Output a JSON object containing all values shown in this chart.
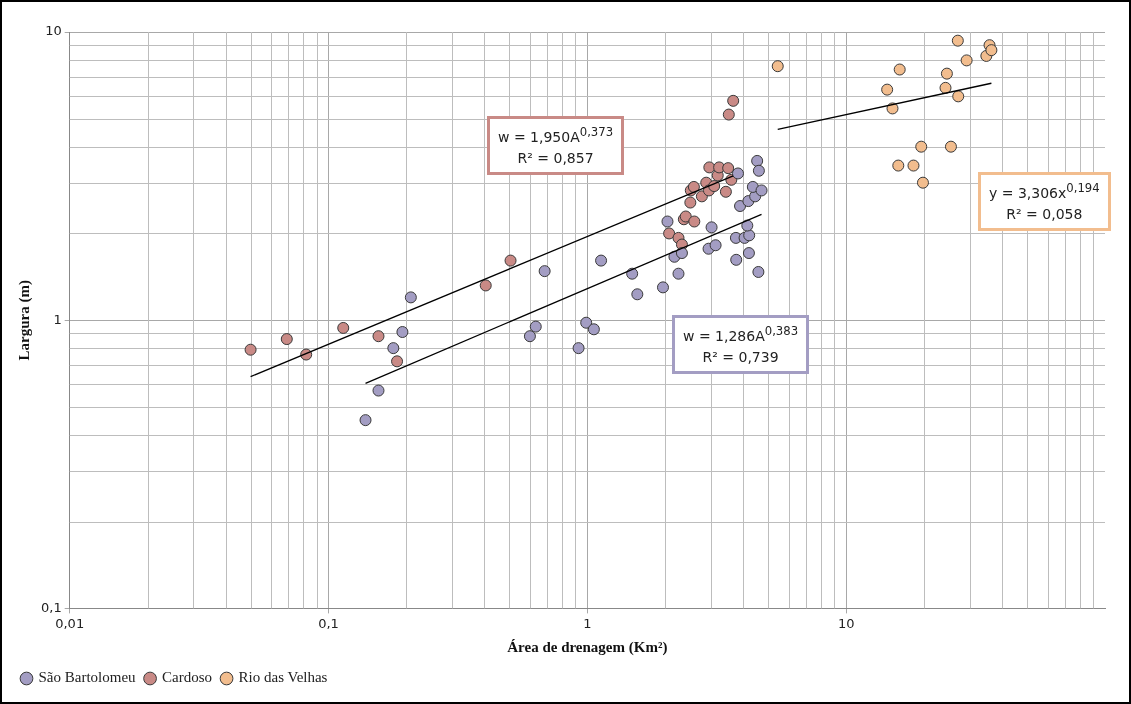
{
  "chart_data": {
    "type": "scatter",
    "xlabel": "Área de drenagem (Km²)",
    "ylabel": "Largura (m)",
    "log": "xy",
    "xlim": [
      0.01,
      100
    ],
    "ylim": [
      0.1,
      10
    ],
    "xticks": [
      {
        "value": 0.01,
        "label": "0,01"
      },
      {
        "value": 0.1,
        "label": "0,1"
      },
      1,
      10
    ],
    "yticks": [
      {
        "value": 0.1,
        "label": "0,1"
      },
      1,
      10
    ],
    "grid": true,
    "legend": "bottom left",
    "marker": "circle",
    "series": [
      {
        "name": "São Bartolomeu",
        "color": "#a39dc3",
        "x": [
          0.208,
          0.193,
          0.178,
          0.156,
          0.139,
          0.684,
          0.632,
          0.6,
          1.13,
          0.99,
          1.06,
          0.925,
          1.49,
          1.56,
          1.96,
          2.25,
          2.04,
          2.17,
          2.32,
          3.02,
          2.94,
          3.13,
          3.76,
          3.75,
          4.05,
          4.22,
          4.15,
          4.21,
          4.58,
          3.82,
          3.89,
          4.19,
          4.45,
          4.36,
          4.71,
          4.53,
          4.6
        ],
        "values": [
          1.2,
          0.91,
          0.8,
          0.57,
          0.45,
          1.48,
          0.95,
          0.88,
          1.61,
          0.98,
          0.93,
          0.8,
          1.45,
          1.23,
          1.3,
          1.45,
          2.2,
          1.66,
          1.71,
          2.1,
          1.77,
          1.82,
          1.62,
          1.93,
          1.93,
          1.97,
          2.13,
          1.71,
          1.47,
          3.23,
          2.49,
          2.59,
          2.69,
          2.9,
          2.82,
          3.57,
          3.3
        ]
      },
      {
        "name": "Cardoso",
        "color": "#c98a86",
        "x": [
          0.05,
          0.069,
          0.082,
          0.114,
          0.156,
          0.184,
          0.405,
          0.505,
          2.07,
          2.25,
          2.32,
          2.36,
          2.4,
          2.59,
          2.5,
          2.51,
          2.58,
          2.77,
          2.88,
          2.95,
          3.09,
          3.19,
          2.96,
          3.23,
          3.5,
          3.43,
          3.6,
          3.52,
          3.66
        ],
        "values": [
          0.79,
          0.86,
          0.76,
          0.94,
          0.88,
          0.72,
          1.32,
          1.61,
          2.0,
          1.93,
          1.83,
          2.24,
          2.29,
          2.2,
          2.56,
          2.82,
          2.9,
          2.69,
          3.0,
          2.82,
          2.92,
          3.18,
          3.39,
          3.39,
          3.37,
          2.79,
          3.07,
          5.17,
          5.77
        ]
      },
      {
        "name": "Rio das Velhas",
        "color": "#f2bd8e",
        "x": [
          5.44,
          14.4,
          16.1,
          15.1,
          15.9,
          18.2,
          19.5,
          19.8,
          25.4,
          24.5,
          24.2,
          27.1,
          27.0,
          29.2,
          34.8,
          35.8,
          36.4
        ],
        "values": [
          7.61,
          6.31,
          7.41,
          5.43,
          3.44,
          3.44,
          4.0,
          3.0,
          4.0,
          7.17,
          6.4,
          5.98,
          9.33,
          7.97,
          8.26,
          9.0,
          8.65
        ]
      },
      {
        "type": "line",
        "marker": "none",
        "color": "#000000",
        "x": [
          0.139,
          4.71
        ],
        "values": [
          0.604,
          2.33
        ]
      },
      {
        "type": "line",
        "marker": "none",
        "color": "#000000",
        "x": [
          0.05,
          3.66
        ],
        "values": [
          0.637,
          3.17
        ]
      },
      {
        "type": "line",
        "marker": "none",
        "color": "#000000",
        "x": [
          5.44,
          36.4
        ],
        "values": [
          4.59,
          6.64
        ]
      }
    ],
    "annotations": [
      "w = 1,950A$^{0,373}$",
      "R² = 0,857",
      "w = 1,286A$^{0,383}$",
      "R² = 0,739",
      "y = 3,306x$^{0,194}$",
      "R² = 0,058"
    ]
  }
}
